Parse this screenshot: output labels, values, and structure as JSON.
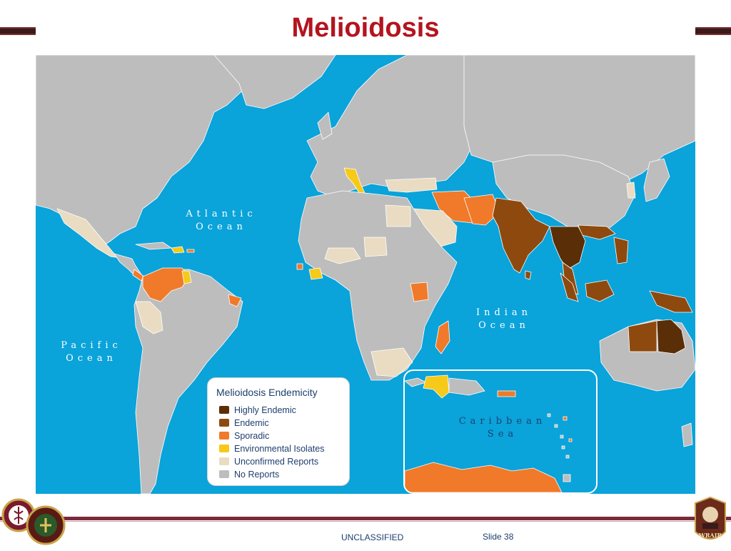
{
  "slide": {
    "title": "Melioidosis",
    "classification": "UNCLASSIFIED",
    "slide_number": "Slide 38"
  },
  "map": {
    "ocean_labels": [
      {
        "id": "atlantic",
        "text": "Atlantic\nOcean"
      },
      {
        "id": "pacific",
        "text": "Pacific\nOcean"
      },
      {
        "id": "indian",
        "text": "Indian\nOcean"
      },
      {
        "id": "caribbean",
        "text": "Caribbean\nSea"
      }
    ],
    "legend": {
      "title": "Melioidosis Endemicity",
      "items": [
        {
          "label": "Highly Endemic",
          "color": "#5a2e06"
        },
        {
          "label": "Endemic",
          "color": "#8e4a0e"
        },
        {
          "label": "Sporadic",
          "color": "#f07a2a"
        },
        {
          "label": "Environmental Isolates",
          "color": "#f7c918"
        },
        {
          "label": "Unconfirmed Reports",
          "color": "#e9dcc2"
        },
        {
          "label": "No Reports",
          "color": "#bdbdbd"
        }
      ]
    },
    "colors": {
      "ocean": "#0aa3da",
      "no_reports": "#bdbdbd",
      "border": "#ffffff"
    }
  },
  "logos": {
    "left": "RHCE / Medical Command seals",
    "right": "WRAIR",
    "right_text": "WRAIR"
  }
}
